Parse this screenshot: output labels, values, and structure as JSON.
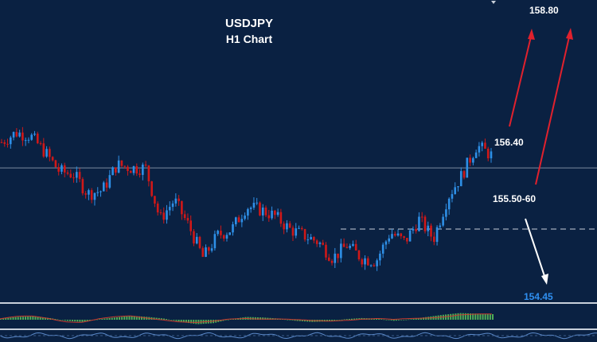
{
  "colors": {
    "background": "#0a2142",
    "bull": "#2e8fe6",
    "bear": "#d01818",
    "text": "#ffffff",
    "target_low_text": "#2f8ff0",
    "red_arrow": "#e0212d",
    "white_arrow": "#ffffff",
    "osc_green": "#4fae56",
    "osc_red": "#c83a30"
  },
  "chart_data": {
    "type": "candlestick",
    "title": "USDJPY",
    "subtitle": "H1 Chart",
    "xlabel": "",
    "ylabel": "",
    "ylim": [
      154.45,
      158.95
    ],
    "grid": false,
    "reference_lines": {
      "resistance": 156.5,
      "support": 155.55
    },
    "levels": [
      {
        "label": "158.80",
        "value": 158.8
      },
      {
        "label": "156.40",
        "value": 156.4
      },
      {
        "label": "155.50-60",
        "value": 155.55
      },
      {
        "label": "154.45",
        "value": 154.45
      }
    ],
    "close_path": [
      156.9,
      157.05,
      157.0,
      156.75,
      156.45,
      156.4,
      156.1,
      156.15,
      156.55,
      156.5,
      156.5,
      155.7,
      156.0,
      155.6,
      155.1,
      155.45,
      155.55,
      155.9,
      155.85,
      155.75,
      155.55,
      155.45,
      155.35,
      155.1,
      155.3,
      155.1,
      155.05,
      155.5,
      155.35,
      155.7,
      155.4,
      156.05,
      156.4,
      156.85,
      156.7
    ]
  },
  "oscillator": {
    "values": [
      0.1,
      0.25,
      0.3,
      0.15,
      -0.1,
      -0.2,
      0.05,
      0.2,
      0.35,
      0.25,
      0.1,
      -0.2,
      -0.4,
      -0.3,
      0.05,
      0.25,
      0.2,
      0.1,
      -0.1,
      -0.2,
      -0.15,
      0.05,
      0.15,
      0.1,
      -0.1,
      0.05,
      0.25,
      0.45,
      0.6,
      0.55,
      0.5
    ]
  }
}
